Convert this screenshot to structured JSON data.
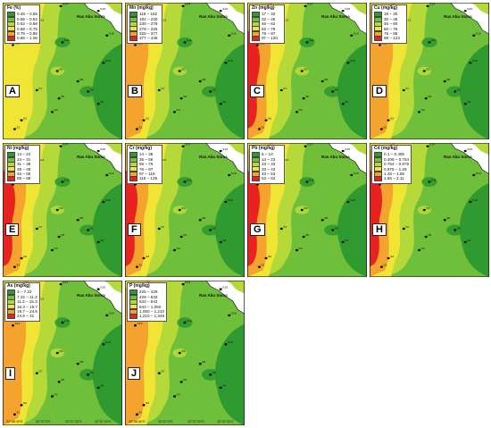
{
  "place_name": "Ras Abu Soma",
  "class_colors": [
    "#2f9a2f",
    "#6fbf3a",
    "#b5d939",
    "#f0e535",
    "#f3a32e",
    "#e8231f"
  ],
  "coords_lon": [
    "33°56'40\"E",
    "33°57'0\"E",
    "33°57'20\"E",
    "33°57'40\"E"
  ],
  "stations": [
    "S14",
    "S13",
    "S12",
    "S15",
    "S16",
    "S11",
    "S10",
    "S9",
    "S8",
    "S7",
    "S6",
    "S5",
    "S4",
    "S3",
    "S2",
    "S1"
  ],
  "panels": [
    {
      "letter": "A",
      "element": "Fe (%)",
      "classes": [
        "0.46 – 0.55",
        "0.55 – 0.62",
        "0.62 – 0.68",
        "0.68 – 0.75",
        "0.75 – 0.86",
        "0.86 – 1.06"
      ],
      "high": "w",
      "level": 2
    },
    {
      "letter": "B",
      "element": "Mn (mg/kg)",
      "classes": [
        "118 – 182",
        "182 – 230",
        "230 – 278",
        "278 – 326",
        "326 – 377",
        "377 – 449"
      ],
      "high": "w",
      "level": 3
    },
    {
      "letter": "C",
      "element": "Zn (mg/kg)",
      "classes": [
        "17 – 32",
        "32 – 46",
        "46 – 62",
        "62 – 79",
        "79 – 97",
        "97 – 120"
      ],
      "high": "w",
      "level": 4
    },
    {
      "letter": "D",
      "element": "Cu (mg/kg)",
      "classes": [
        "18 – 30",
        "30 – 46",
        "46 – 60",
        "60 – 76",
        "76 – 88",
        "88 – 124"
      ],
      "high": "w",
      "level": 3
    },
    {
      "letter": "E",
      "element": "Ni (mg/kg)",
      "classes": [
        "14 – 24",
        "24 – 31",
        "31 – 38",
        "38 – 46",
        "46 – 55",
        "55 – 69"
      ],
      "high": "w",
      "level": 4
    },
    {
      "letter": "F",
      "element": "Cr (mg/kg)",
      "classes": [
        "14 – 36",
        "36 – 56",
        "56 – 76",
        "76 – 97",
        "97 – 116",
        "116 – 139"
      ],
      "high": "w",
      "level": 4
    },
    {
      "letter": "G",
      "element": "Pb (mg/kg)",
      "classes": [
        "6 – 14",
        "14 – 23",
        "23 – 33",
        "33 – 43",
        "43 – 53",
        "53 – 62"
      ],
      "high": "w",
      "level": 4
    },
    {
      "letter": "H",
      "element": "Cd (mg/kg)",
      "classes": [
        "0.1 – 0.406",
        "0.406 – 0.754",
        "0.754 – 0.975",
        "0.975 – 1.28",
        "1.28 – 1.65",
        "1.65 – 2.11"
      ],
      "high": "w",
      "level": 4
    },
    {
      "letter": "I",
      "element": "As (mg/kg)",
      "classes": [
        "3 – 7.22",
        "7.22 – 11.3",
        "11.3 – 15.3",
        "15.3 – 19.7",
        "19.7 – 24.5",
        "24.5 – 31"
      ],
      "high": "w",
      "level": 3
    },
    {
      "letter": "J",
      "element": "P (mg/kg)",
      "classes": [
        "225 – 429",
        "429 – 633",
        "633 – 843",
        "843 – 1,050",
        "1,050 – 1,210",
        "1,210 – 1,349"
      ],
      "high": "w",
      "level": 3
    }
  ]
}
